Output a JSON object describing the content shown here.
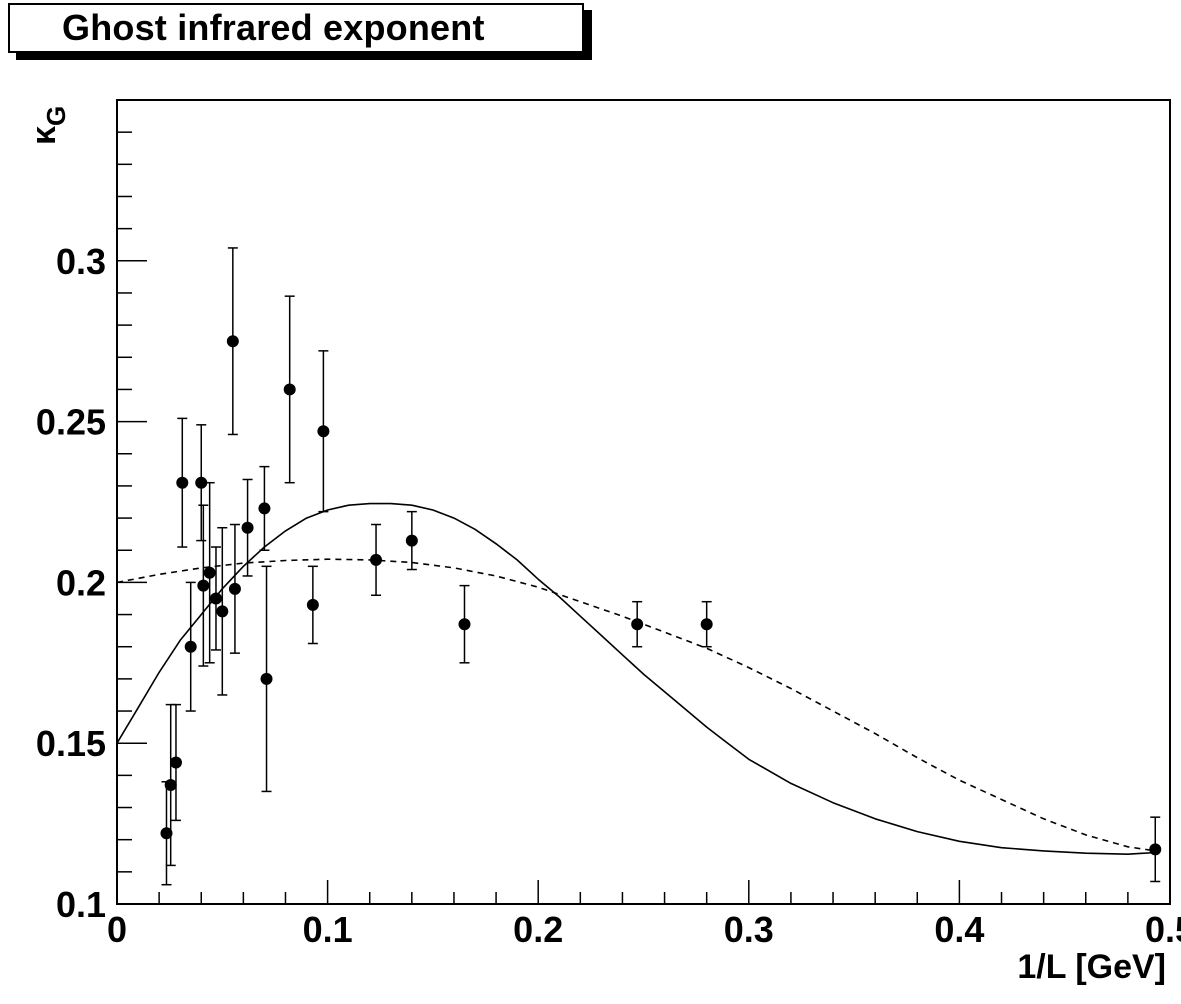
{
  "title": "Ghost infrared exponent",
  "chart_data": {
    "type": "scatter",
    "title": "Ghost infrared exponent",
    "xlabel": "1/L [GeV]",
    "ylabel": "κG",
    "ylabel_main": "κ",
    "ylabel_sub": "G",
    "xlim": [
      0,
      0.5
    ],
    "ylim": [
      0.1,
      0.35
    ],
    "xticks": [
      0,
      0.1,
      0.2,
      0.3,
      0.4,
      0.5
    ],
    "xtick_labels": [
      "0",
      "0.1",
      "0.2",
      "0.3",
      "0.4",
      "0.5"
    ],
    "yticks": [
      0.1,
      0.15,
      0.2,
      0.25,
      0.3
    ],
    "ytick_labels": [
      "0.1",
      "0.15",
      "0.2",
      "0.25",
      "0.3"
    ],
    "grid": false,
    "points": [
      {
        "x": 0.0235,
        "y": 0.122,
        "err": 0.016
      },
      {
        "x": 0.0255,
        "y": 0.137,
        "err": 0.025
      },
      {
        "x": 0.028,
        "y": 0.144,
        "err": 0.018
      },
      {
        "x": 0.031,
        "y": 0.231,
        "err": 0.02
      },
      {
        "x": 0.035,
        "y": 0.18,
        "err": 0.02
      },
      {
        "x": 0.04,
        "y": 0.231,
        "err": 0.018
      },
      {
        "x": 0.041,
        "y": 0.199,
        "err": 0.025
      },
      {
        "x": 0.044,
        "y": 0.203,
        "err": 0.028
      },
      {
        "x": 0.047,
        "y": 0.195,
        "err": 0.016
      },
      {
        "x": 0.05,
        "y": 0.191,
        "err": 0.026
      },
      {
        "x": 0.055,
        "y": 0.275,
        "err": 0.029
      },
      {
        "x": 0.056,
        "y": 0.198,
        "err": 0.02
      },
      {
        "x": 0.062,
        "y": 0.217,
        "err": 0.015
      },
      {
        "x": 0.07,
        "y": 0.223,
        "err": 0.013
      },
      {
        "x": 0.071,
        "y": 0.17,
        "err": 0.035
      },
      {
        "x": 0.082,
        "y": 0.26,
        "err": 0.029
      },
      {
        "x": 0.093,
        "y": 0.193,
        "err": 0.012
      },
      {
        "x": 0.098,
        "y": 0.247,
        "err": 0.025
      },
      {
        "x": 0.123,
        "y": 0.207,
        "err": 0.011
      },
      {
        "x": 0.14,
        "y": 0.213,
        "err": 0.009
      },
      {
        "x": 0.165,
        "y": 0.187,
        "err": 0.012
      },
      {
        "x": 0.247,
        "y": 0.187,
        "err": 0.007
      },
      {
        "x": 0.28,
        "y": 0.187,
        "err": 0.007
      },
      {
        "x": 0.493,
        "y": 0.117,
        "err": 0.01
      }
    ],
    "curves": [
      {
        "style": "solid",
        "x": [
          0,
          0.01,
          0.02,
          0.03,
          0.04,
          0.05,
          0.06,
          0.07,
          0.08,
          0.09,
          0.1,
          0.11,
          0.12,
          0.13,
          0.14,
          0.15,
          0.16,
          0.17,
          0.18,
          0.19,
          0.2,
          0.21,
          0.22,
          0.23,
          0.24,
          0.25,
          0.26,
          0.27,
          0.28,
          0.29,
          0.3,
          0.32,
          0.34,
          0.36,
          0.38,
          0.4,
          0.42,
          0.44,
          0.46,
          0.48,
          0.493
        ],
        "y": [
          0.15,
          0.161,
          0.172,
          0.182,
          0.19,
          0.198,
          0.205,
          0.211,
          0.216,
          0.22,
          0.2225,
          0.224,
          0.2245,
          0.2245,
          0.224,
          0.2225,
          0.22,
          0.2165,
          0.212,
          0.207,
          0.201,
          0.1955,
          0.1895,
          0.1835,
          0.1775,
          0.1715,
          0.166,
          0.1605,
          0.155,
          0.15,
          0.145,
          0.1375,
          0.1315,
          0.1265,
          0.1225,
          0.1195,
          0.1175,
          0.1165,
          0.1158,
          0.1155,
          0.116
        ]
      },
      {
        "style": "dashed",
        "x": [
          0,
          0.02,
          0.04,
          0.06,
          0.08,
          0.1,
          0.12,
          0.14,
          0.16,
          0.18,
          0.2,
          0.22,
          0.24,
          0.26,
          0.28,
          0.3,
          0.32,
          0.34,
          0.36,
          0.38,
          0.4,
          0.42,
          0.44,
          0.46,
          0.48,
          0.493
        ],
        "y": [
          0.2,
          0.2025,
          0.2045,
          0.206,
          0.2068,
          0.2072,
          0.207,
          0.2062,
          0.2045,
          0.202,
          0.1985,
          0.194,
          0.1895,
          0.1845,
          0.1795,
          0.1735,
          0.167,
          0.16,
          0.153,
          0.1455,
          0.1385,
          0.1325,
          0.1265,
          0.1215,
          0.1178,
          0.1165
        ]
      }
    ]
  }
}
